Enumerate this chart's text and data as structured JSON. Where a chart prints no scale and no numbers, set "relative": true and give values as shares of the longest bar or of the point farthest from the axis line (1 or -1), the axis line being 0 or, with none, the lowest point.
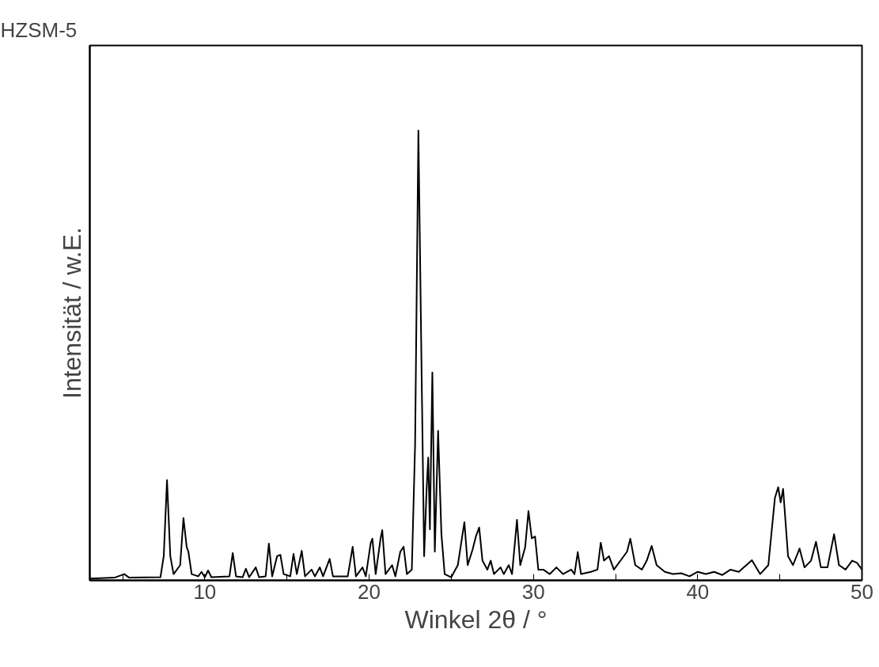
{
  "chart_data": {
    "type": "line",
    "title": "HZSM-5",
    "xlabel": "Winkel 2θ / °",
    "ylabel": "Intensität / w.E.",
    "relative": true,
    "xlim": [
      3,
      50
    ],
    "xticks": [
      {
        "value": 5,
        "label": null
      },
      10,
      {
        "value": 15,
        "label": null
      },
      20,
      {
        "value": 25,
        "label": null
      },
      30,
      {
        "value": 35,
        "label": null
      },
      40,
      {
        "value": 45,
        "label": null
      },
      50
    ],
    "grid": false,
    "marker": "none",
    "line_style": "solid",
    "series": [
      {
        "color": "#000000",
        "x": [
          3,
          4.5,
          5.1,
          5.4,
          7.3,
          7.5,
          7.7,
          7.9,
          8.1,
          8.5,
          8.7,
          8.9,
          9.0,
          9.2,
          9.6,
          9.8,
          10.0,
          10.2,
          10.4,
          11.5,
          11.7,
          11.9,
          12.3,
          12.5,
          12.7,
          13.1,
          13.3,
          13.7,
          13.9,
          14.1,
          14.4,
          14.6,
          14.8,
          15.2,
          15.4,
          15.6,
          15.9,
          16.1,
          16.5,
          16.7,
          17.0,
          17.2,
          17.6,
          17.8,
          18.7,
          19.0,
          19.2,
          19.6,
          19.8,
          20.1,
          20.2,
          20.4,
          20.7,
          20.8,
          21.0,
          21.4,
          21.6,
          21.9,
          22.1,
          22.3,
          22.6,
          22.8,
          23.0,
          23.2,
          23.35,
          23.5,
          23.6,
          23.7,
          23.85,
          24.0,
          24.2,
          24.4,
          24.6,
          25.0,
          25.4,
          25.8,
          26.0,
          26.3,
          26.5,
          26.7,
          26.9,
          27.2,
          27.4,
          27.6,
          28.0,
          28.2,
          28.5,
          28.7,
          29.0,
          29.2,
          29.5,
          29.7,
          29.9,
          30.1,
          30.3,
          30.6,
          31.0,
          31.4,
          31.8,
          32.3,
          32.5,
          32.7,
          32.9,
          33.5,
          33.9,
          34.1,
          34.3,
          34.6,
          34.9,
          35.4,
          35.7,
          35.9,
          36.2,
          36.6,
          36.9,
          37.2,
          37.5,
          38.0,
          38.5,
          39.0,
          39.5,
          40.0,
          40.5,
          41.0,
          41.5,
          42.0,
          42.5,
          43.3,
          43.8,
          44.3,
          44.7,
          44.9,
          45.05,
          45.2,
          45.5,
          45.8,
          46.2,
          46.5,
          46.9,
          47.2,
          47.5,
          47.9,
          48.3,
          48.6,
          49.0,
          49.4,
          49.7,
          50.0
        ],
        "values": [
          0.0,
          0.002,
          0.01,
          0.002,
          0.003,
          0.05,
          0.22,
          0.05,
          0.01,
          0.03,
          0.135,
          0.07,
          0.06,
          0.01,
          0.005,
          0.015,
          0.003,
          0.018,
          0.003,
          0.005,
          0.057,
          0.005,
          0.003,
          0.022,
          0.003,
          0.025,
          0.003,
          0.005,
          0.078,
          0.005,
          0.05,
          0.053,
          0.01,
          0.005,
          0.055,
          0.01,
          0.062,
          0.005,
          0.02,
          0.005,
          0.025,
          0.005,
          0.044,
          0.005,
          0.005,
          0.071,
          0.005,
          0.025,
          0.005,
          0.08,
          0.089,
          0.01,
          0.09,
          0.108,
          0.01,
          0.03,
          0.005,
          0.06,
          0.071,
          0.01,
          0.02,
          0.3,
          1.0,
          0.45,
          0.05,
          0.2,
          0.27,
          0.11,
          0.46,
          0.06,
          0.33,
          0.1,
          0.01,
          0.003,
          0.03,
          0.126,
          0.03,
          0.065,
          0.094,
          0.114,
          0.04,
          0.02,
          0.04,
          0.01,
          0.025,
          0.01,
          0.03,
          0.01,
          0.131,
          0.03,
          0.07,
          0.151,
          0.09,
          0.094,
          0.02,
          0.02,
          0.01,
          0.025,
          0.01,
          0.02,
          0.01,
          0.059,
          0.01,
          0.015,
          0.02,
          0.08,
          0.04,
          0.05,
          0.02,
          0.045,
          0.06,
          0.089,
          0.03,
          0.02,
          0.04,
          0.073,
          0.03,
          0.015,
          0.01,
          0.012,
          0.005,
          0.015,
          0.01,
          0.015,
          0.008,
          0.02,
          0.015,
          0.041,
          0.01,
          0.03,
          0.18,
          0.204,
          0.17,
          0.2,
          0.05,
          0.03,
          0.067,
          0.025,
          0.04,
          0.082,
          0.025,
          0.025,
          0.099,
          0.03,
          0.02,
          0.04,
          0.035,
          0.02
        ]
      }
    ]
  }
}
